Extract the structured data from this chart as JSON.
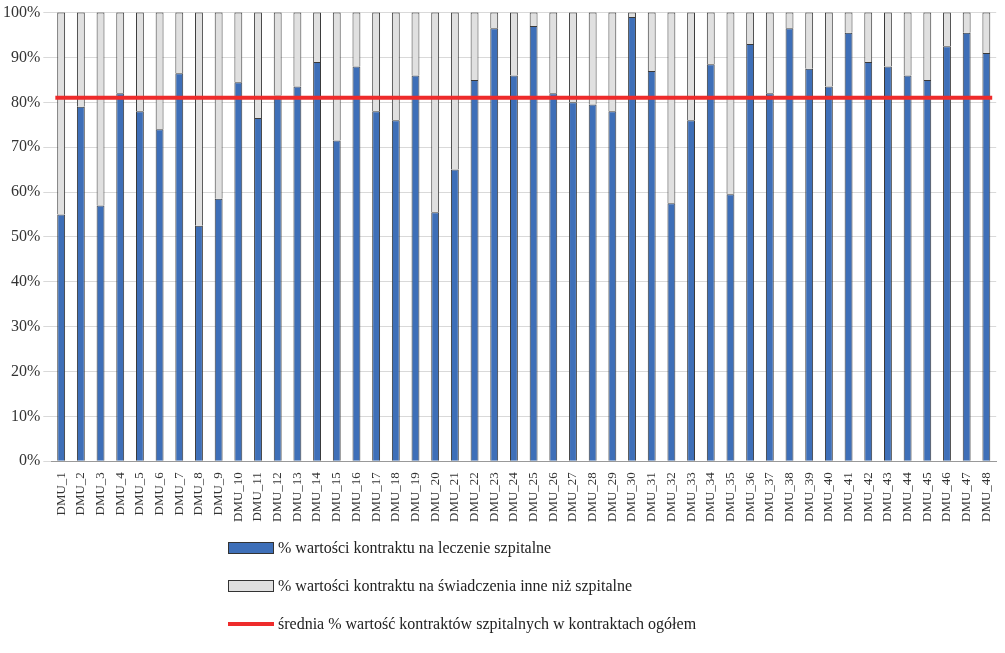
{
  "chart_data": {
    "type": "bar",
    "stacked": true,
    "categories": [
      "DMU_1",
      "DMU_2",
      "DMU_3",
      "DMU_4",
      "DMU_5",
      "DMU_6",
      "DMU_7",
      "DMU_8",
      "DMU_9",
      "DMU_10",
      "DMU_11",
      "DMU_12",
      "DMU_13",
      "DMU_14",
      "DMU_15",
      "DMU_16",
      "DMU_17",
      "DMU_18",
      "DMU_19",
      "DMU_20",
      "DMU_21",
      "DMU_22",
      "DMU_23",
      "DMU_24",
      "DMU_25",
      "DMU_26",
      "DMU_27",
      "DMU_28",
      "DMU_29",
      "DMU_30",
      "DMU_31",
      "DMU_32",
      "DMU_33",
      "DMU_34",
      "DMU_35",
      "DMU_36",
      "DMU_37",
      "DMU_38",
      "DMU_39",
      "DMU_40",
      "DMU_41",
      "DMU_42",
      "DMU_43",
      "DMU_44",
      "DMU_45",
      "DMU_46",
      "DMU_47",
      "DMU_48"
    ],
    "series": [
      {
        "name": "% wartości kontraktu na leczenie szpitalne",
        "color": "#3e6fb8",
        "values": [
          55,
          79,
          57,
          82,
          78,
          74,
          86.5,
          52.5,
          58.5,
          84.5,
          76.5,
          81.5,
          83.5,
          89,
          71.5,
          88,
          78,
          76,
          86,
          55.5,
          65,
          85,
          96.5,
          86,
          97,
          82,
          80,
          79.5,
          78,
          99,
          87,
          57.5,
          76,
          88.5,
          59.5,
          93,
          82,
          96.5,
          87.5,
          83.5,
          95.5,
          89,
          88,
          86,
          85,
          92.5,
          95.5,
          91
        ]
      },
      {
        "name": "% wartości kontraktu na świadczenia inne niż szpitalne",
        "color": "#e0e0e0",
        "values": [
          45,
          21,
          43,
          18,
          22,
          26,
          13.5,
          47.5,
          41.5,
          15.5,
          23.5,
          18.5,
          16.5,
          11,
          28.5,
          12,
          22,
          24,
          14,
          44.5,
          35,
          15,
          3.5,
          14,
          3,
          18,
          20,
          20.5,
          22,
          1,
          13,
          42.5,
          24,
          11.5,
          40.5,
          7,
          18,
          3.5,
          12.5,
          16.5,
          4.5,
          11,
          12,
          14,
          15,
          7.5,
          4.5,
          9
        ]
      }
    ],
    "ref_lines": [
      {
        "axis": "y",
        "value": 81,
        "label": "średnia % wartość kontraktów szpitalnych w kontraktach ogółem",
        "color": "#ee2b2b"
      }
    ],
    "ylim": [
      0,
      100
    ],
    "yticks": [
      {
        "value": 0,
        "label": "0%"
      },
      {
        "value": 10,
        "label": "10%"
      },
      {
        "value": 20,
        "label": "20%"
      },
      {
        "value": 30,
        "label": "30%"
      },
      {
        "value": 40,
        "label": "40%"
      },
      {
        "value": 50,
        "label": "50%"
      },
      {
        "value": 60,
        "label": "60%"
      },
      {
        "value": 70,
        "label": "70%"
      },
      {
        "value": 80,
        "label": "80%"
      },
      {
        "value": 90,
        "label": "90%"
      },
      {
        "value": 100,
        "label": "100%"
      }
    ],
    "grid": "y",
    "legend": "bottom"
  }
}
